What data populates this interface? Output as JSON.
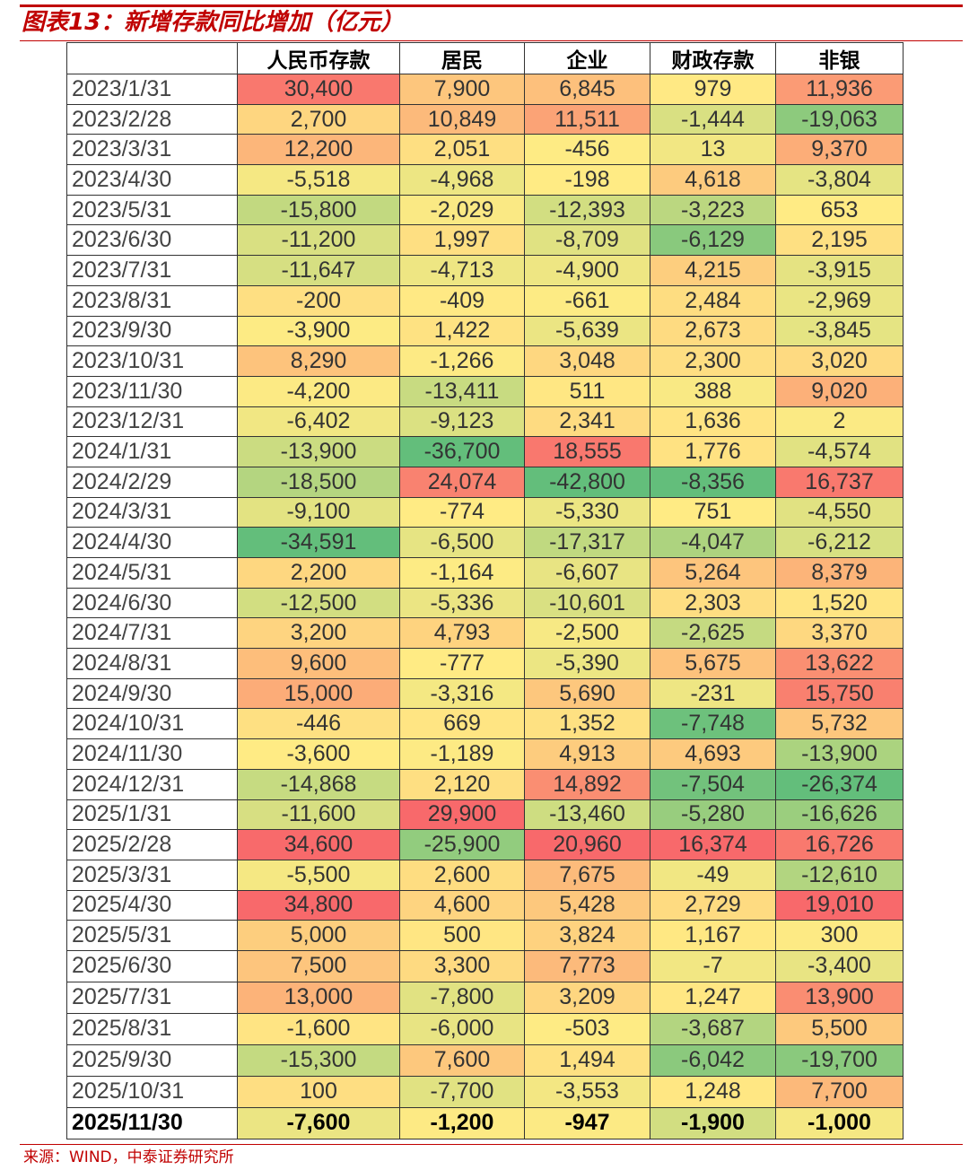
{
  "title": "图表13：新增存款同比增加（亿元）",
  "source": "来源：WIND，中泰证券研究所",
  "colors": {
    "accent": "#c00000",
    "low": "#63be7b",
    "mid": "#ffeb84",
    "high": "#f8696b"
  },
  "table": {
    "headers": [
      "",
      "人民币存款",
      "居民",
      "企业",
      "财政存款",
      "非银"
    ],
    "rows": [
      {
        "date": "2023/1/31",
        "values": [
          "30,400",
          "7,900",
          "6,845",
          "979",
          "11,936"
        ]
      },
      {
        "date": "2023/2/28",
        "values": [
          "2,700",
          "10,849",
          "11,511",
          "-1,444",
          "-19,063"
        ]
      },
      {
        "date": "2023/3/31",
        "values": [
          "12,200",
          "2,051",
          "-456",
          "13",
          "9,370"
        ]
      },
      {
        "date": "2023/4/30",
        "values": [
          "-5,518",
          "-4,968",
          "-198",
          "4,618",
          "-3,804"
        ]
      },
      {
        "date": "2023/5/31",
        "values": [
          "-15,800",
          "-2,029",
          "-12,393",
          "-3,223",
          "653"
        ]
      },
      {
        "date": "2023/6/30",
        "values": [
          "-11,200",
          "1,997",
          "-8,709",
          "-6,129",
          "2,195"
        ]
      },
      {
        "date": "2023/7/31",
        "values": [
          "-11,647",
          "-4,713",
          "-4,900",
          "4,215",
          "-3,915"
        ]
      },
      {
        "date": "2023/8/31",
        "values": [
          "-200",
          "-409",
          "-661",
          "2,484",
          "-2,969"
        ]
      },
      {
        "date": "2023/9/30",
        "values": [
          "-3,900",
          "1,422",
          "-5,639",
          "2,673",
          "-3,845"
        ]
      },
      {
        "date": "2023/10/31",
        "values": [
          "8,290",
          "-1,266",
          "3,048",
          "2,300",
          "3,020"
        ]
      },
      {
        "date": "2023/11/30",
        "values": [
          "-4,200",
          "-13,411",
          "511",
          "388",
          "9,020"
        ]
      },
      {
        "date": "2023/12/31",
        "values": [
          "-6,402",
          "-9,123",
          "2,341",
          "1,636",
          "2"
        ]
      },
      {
        "date": "2024/1/31",
        "values": [
          "-13,900",
          "-36,700",
          "18,555",
          "1,776",
          "-4,574"
        ]
      },
      {
        "date": "2024/2/29",
        "values": [
          "-18,500",
          "24,074",
          "-42,800",
          "-8,356",
          "16,737"
        ]
      },
      {
        "date": "2024/3/31",
        "values": [
          "-9,100",
          "-774",
          "-5,330",
          "751",
          "-4,550"
        ]
      },
      {
        "date": "2024/4/30",
        "values": [
          "-34,591",
          "-6,500",
          "-17,317",
          "-4,047",
          "-6,212"
        ]
      },
      {
        "date": "2024/5/31",
        "values": [
          "2,200",
          "-1,164",
          "-6,607",
          "5,264",
          "8,379"
        ]
      },
      {
        "date": "2024/6/30",
        "values": [
          "-12,500",
          "-5,336",
          "-10,601",
          "2,303",
          "1,520"
        ]
      },
      {
        "date": "2024/7/31",
        "values": [
          "3,200",
          "4,793",
          "-2,500",
          "-2,625",
          "3,370"
        ]
      },
      {
        "date": "2024/8/31",
        "values": [
          "9,600",
          "-777",
          "-5,390",
          "5,675",
          "13,622"
        ]
      },
      {
        "date": "2024/9/30",
        "values": [
          "15,000",
          "-3,316",
          "5,690",
          "-231",
          "15,750"
        ]
      },
      {
        "date": "2024/10/31",
        "values": [
          "-446",
          "669",
          "1,352",
          "-7,748",
          "5,732"
        ]
      },
      {
        "date": "2024/11/30",
        "values": [
          "-3,600",
          "-1,189",
          "4,913",
          "4,693",
          "-13,900"
        ]
      },
      {
        "date": "2024/12/31",
        "values": [
          "-14,868",
          "2,120",
          "14,892",
          "-7,504",
          "-26,374"
        ]
      },
      {
        "date": "2025/1/31",
        "values": [
          "-11,600",
          "29,900",
          "-13,460",
          "-5,280",
          "-16,626"
        ]
      },
      {
        "date": "2025/2/28",
        "values": [
          "34,600",
          "-25,900",
          "20,960",
          "16,374",
          "16,726"
        ]
      },
      {
        "date": "2025/3/31",
        "values": [
          "-5,500",
          "2,600",
          "7,675",
          "-49",
          "-12,610"
        ]
      },
      {
        "date": "2025/4/30",
        "values": [
          "34,800",
          "4,600",
          "5,428",
          "2,729",
          "19,010"
        ]
      },
      {
        "date": "2025/5/31",
        "values": [
          "5,000",
          "500",
          "3,824",
          "1,167",
          "300"
        ]
      },
      {
        "date": "2025/6/30",
        "values": [
          "7,500",
          "3,300",
          "7,773",
          "-7",
          "-3,400"
        ]
      },
      {
        "date": "2025/7/31",
        "values": [
          "13,000",
          "-7,800",
          "3,209",
          "1,247",
          "13,900"
        ]
      },
      {
        "date": "2025/8/31",
        "values": [
          "-1,600",
          "-6,000",
          "-503",
          "-3,687",
          "5,500"
        ]
      },
      {
        "date": "2025/9/30",
        "values": [
          "-15,300",
          "7,600",
          "1,494",
          "-6,042",
          "-19,700"
        ]
      },
      {
        "date": "2025/10/31",
        "values": [
          "100",
          "-7,700",
          "-3,553",
          "1,248",
          "7,700"
        ]
      },
      {
        "date": "2025/11/30",
        "values": [
          "-7,600",
          "-1,200",
          "-947",
          "-1,900",
          "-1,000"
        ]
      }
    ]
  }
}
